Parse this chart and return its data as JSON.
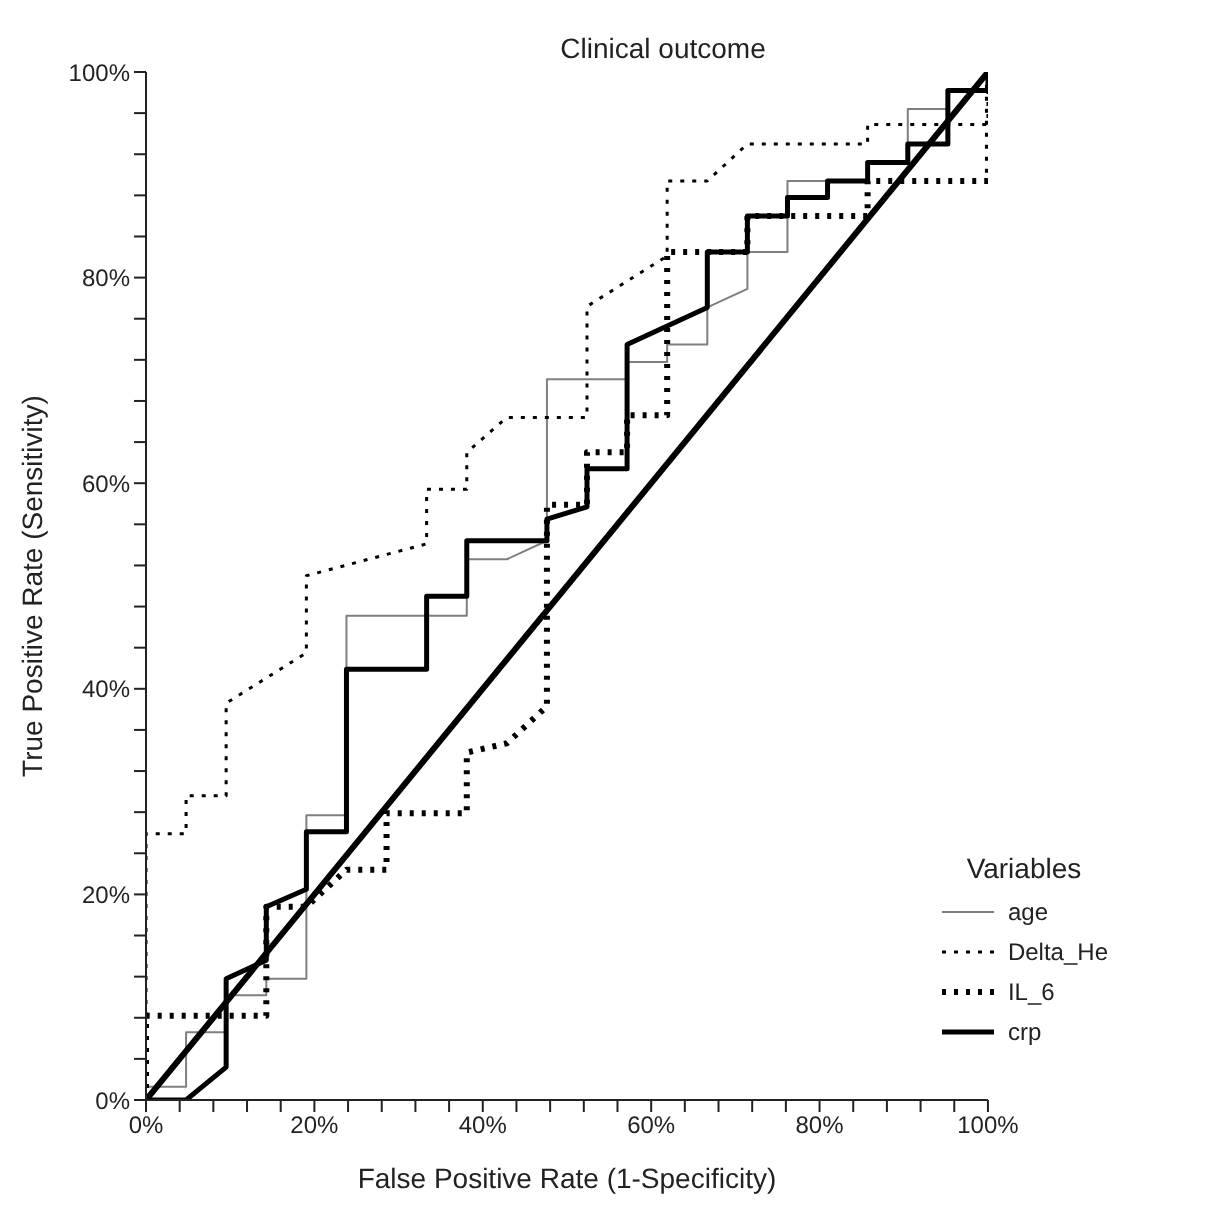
{
  "chart_data": {
    "type": "line",
    "title": "Clinical outcome",
    "xlabel": "False Positive Rate (1-Specificity)",
    "ylabel": "True Positive Rate (Sensitivity)",
    "legend_title": "Variables",
    "legend": "bottom right",
    "grid": false,
    "marker": "none",
    "xlim": [
      0,
      100
    ],
    "ylim": [
      0,
      100
    ],
    "xticks": [
      {
        "value": 0,
        "label": "0%"
      },
      {
        "value": 4,
        "label": null
      },
      {
        "value": 8,
        "label": null
      },
      {
        "value": 12,
        "label": null
      },
      {
        "value": 16,
        "label": null
      },
      {
        "value": 20,
        "label": "20%"
      },
      {
        "value": 24,
        "label": null
      },
      {
        "value": 28,
        "label": null
      },
      {
        "value": 32,
        "label": null
      },
      {
        "value": 36,
        "label": null
      },
      {
        "value": 40,
        "label": "40%"
      },
      {
        "value": 44,
        "label": null
      },
      {
        "value": 48,
        "label": null
      },
      {
        "value": 52,
        "label": null
      },
      {
        "value": 56,
        "label": null
      },
      {
        "value": 60,
        "label": "60%"
      },
      {
        "value": 64,
        "label": null
      },
      {
        "value": 68,
        "label": null
      },
      {
        "value": 72,
        "label": null
      },
      {
        "value": 76,
        "label": null
      },
      {
        "value": 80,
        "label": "80%"
      },
      {
        "value": 84,
        "label": null
      },
      {
        "value": 88,
        "label": null
      },
      {
        "value": 92,
        "label": null
      },
      {
        "value": 96,
        "label": null
      },
      {
        "value": 100,
        "label": "100%"
      }
    ],
    "yticks": [
      {
        "value": 0,
        "label": "0%"
      },
      {
        "value": 4,
        "label": null
      },
      {
        "value": 8,
        "label": null
      },
      {
        "value": 12,
        "label": null
      },
      {
        "value": 16,
        "label": null
      },
      {
        "value": 20,
        "label": "20%"
      },
      {
        "value": 24,
        "label": null
      },
      {
        "value": 28,
        "label": null
      },
      {
        "value": 32,
        "label": null
      },
      {
        "value": 36,
        "label": null
      },
      {
        "value": 40,
        "label": "40%"
      },
      {
        "value": 44,
        "label": null
      },
      {
        "value": 48,
        "label": null
      },
      {
        "value": 52,
        "label": null
      },
      {
        "value": 56,
        "label": null
      },
      {
        "value": 60,
        "label": "60%"
      },
      {
        "value": 64,
        "label": null
      },
      {
        "value": 68,
        "label": null
      },
      {
        "value": 72,
        "label": null
      },
      {
        "value": 76,
        "label": null
      },
      {
        "value": 80,
        "label": "80%"
      },
      {
        "value": 84,
        "label": null
      },
      {
        "value": 88,
        "label": null
      },
      {
        "value": 92,
        "label": null
      },
      {
        "value": 96,
        "label": null
      },
      {
        "value": 100,
        "label": "100%"
      }
    ],
    "series": [
      {
        "name": "age",
        "color": "#7f7f7f",
        "line_style": "solid",
        "x": [
          0,
          0,
          4.76,
          4.76,
          9.52,
          9.52,
          14.29,
          14.29,
          19.05,
          19.05,
          23.81,
          23.81,
          38.1,
          38.1,
          42.86,
          47.62,
          47.62,
          57.14,
          57.14,
          61.9,
          61.9,
          66.67,
          66.67,
          71.43,
          71.43,
          76.19,
          76.19,
          85.71,
          85.71,
          90.48,
          90.48,
          95.24,
          95.24,
          100,
          100
        ],
        "values": [
          0,
          1.3,
          1.3,
          6.6,
          6.6,
          10.2,
          10.2,
          11.8,
          11.8,
          27.7,
          27.7,
          47.1,
          47.1,
          52.6,
          52.6,
          54.4,
          70.1,
          70.1,
          71.8,
          71.8,
          73.5,
          73.5,
          77.1,
          78.9,
          82.5,
          82.5,
          89.4,
          89.4,
          91.2,
          91.2,
          96.4,
          96.4,
          98.2,
          98.2,
          100
        ]
      },
      {
        "name": "Delta_He",
        "color": "#000000",
        "line_style": "dotted",
        "x": [
          0,
          0,
          4.76,
          4.76,
          9.52,
          9.52,
          19.05,
          19.05,
          33.33,
          33.33,
          38.1,
          38.1,
          42.86,
          52.38,
          52.38,
          61.9,
          61.9,
          66.67,
          71.43,
          85.71,
          85.71,
          100,
          100
        ],
        "values": [
          0,
          25.9,
          25.9,
          29.6,
          29.6,
          38.6,
          43.5,
          51.0,
          54.1,
          59.4,
          59.4,
          63.0,
          66.4,
          66.4,
          77.2,
          82.1,
          89.4,
          89.4,
          93.0,
          93.0,
          94.9,
          94.9,
          100
        ]
      },
      {
        "name": "IL_6",
        "color": "#000000",
        "line_style": "dotted",
        "x": [
          0,
          0,
          14.29,
          14.29,
          19.05,
          23.81,
          28.57,
          28.57,
          38.1,
          38.1,
          42.86,
          47.62,
          47.62,
          52.38,
          52.38,
          57.14,
          57.14,
          61.9,
          61.9,
          66.67,
          71.43,
          71.43,
          85.71,
          85.71,
          100,
          100
        ],
        "values": [
          0,
          8.2,
          8.2,
          18.8,
          18.8,
          22.4,
          22.4,
          27.9,
          27.9,
          33.8,
          34.7,
          38.3,
          57.9,
          57.9,
          63.0,
          63.0,
          66.6,
          66.6,
          82.5,
          82.5,
          82.5,
          86.0,
          86.0,
          89.4,
          89.4,
          100
        ]
      },
      {
        "name": "crp",
        "color": "#000000",
        "line_style": "solid",
        "x": [
          0,
          4.76,
          9.52,
          9.52,
          14.29,
          14.29,
          19.05,
          19.05,
          23.81,
          23.81,
          33.33,
          33.33,
          38.1,
          38.1,
          47.62,
          47.62,
          52.38,
          52.38,
          57.14,
          57.14,
          66.67,
          66.67,
          71.43,
          71.43,
          76.19,
          76.19,
          80.95,
          80.95,
          85.71,
          85.71,
          90.48,
          90.48,
          95.24,
          95.24,
          100,
          100
        ],
        "values": [
          0,
          0,
          3.2,
          11.8,
          13.6,
          18.8,
          20.5,
          26.1,
          26.1,
          41.9,
          41.9,
          49.0,
          49.0,
          54.4,
          54.4,
          56.5,
          57.7,
          61.4,
          61.4,
          73.5,
          77.1,
          82.5,
          82.5,
          86.0,
          86.0,
          87.8,
          87.8,
          89.4,
          89.4,
          91.2,
          91.2,
          93.0,
          93.0,
          98.2,
          98.2,
          100
        ]
      },
      {
        "color": "#000000",
        "line_style": "solid",
        "x": [
          0,
          100
        ],
        "values": [
          0,
          100
        ]
      }
    ]
  }
}
